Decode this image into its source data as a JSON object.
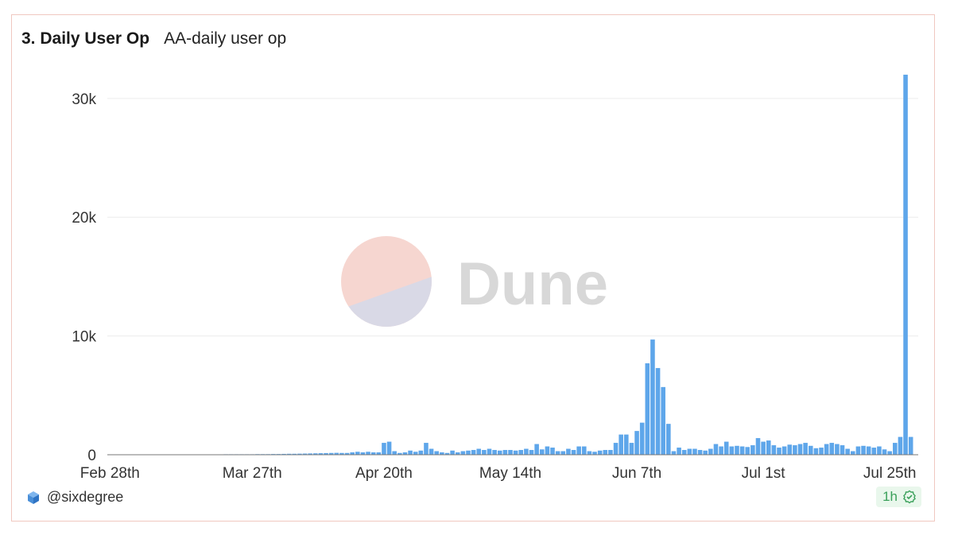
{
  "header": {
    "title": "3. Daily User Op",
    "subtitle": "AA-daily user op"
  },
  "watermark": {
    "text": "Dune"
  },
  "footer": {
    "author": "@sixdegree",
    "refresh_age": "1h"
  },
  "colors": {
    "bar": "#5ea6ea",
    "grid": "#ececec",
    "watermark_top": "#f6d6d0",
    "watermark_bottom": "#d9d9e6"
  },
  "chart_data": {
    "type": "bar",
    "title": "AA-daily user op",
    "xlabel": "",
    "ylabel": "",
    "ylim": [
      0,
      33000
    ],
    "yticks": [
      0,
      10000,
      20000,
      30000
    ],
    "ytick_labels": [
      "0",
      "10k",
      "20k",
      "30k"
    ],
    "xtick_labels": [
      "Feb 28th",
      "Mar 27th",
      "Apr 20th",
      "May 14th",
      "Jun 7th",
      "Jul 1st",
      "Jul 25th"
    ],
    "xtick_index": [
      0,
      27,
      52,
      76,
      100,
      124,
      148
    ],
    "grid": true,
    "legend": "none",
    "values": [
      20,
      20,
      20,
      20,
      20,
      20,
      20,
      20,
      20,
      20,
      30,
      30,
      30,
      30,
      30,
      30,
      30,
      30,
      30,
      30,
      30,
      30,
      40,
      40,
      40,
      40,
      40,
      40,
      50,
      50,
      50,
      60,
      60,
      70,
      80,
      80,
      90,
      100,
      110,
      120,
      130,
      140,
      150,
      160,
      150,
      150,
      200,
      250,
      200,
      250,
      200,
      200,
      1000,
      1100,
      300,
      150,
      200,
      350,
      250,
      350,
      1000,
      500,
      300,
      200,
      150,
      350,
      200,
      300,
      350,
      400,
      500,
      400,
      500,
      400,
      350,
      400,
      400,
      350,
      400,
      500,
      400,
      900,
      450,
      700,
      600,
      300,
      300,
      500,
      400,
      700,
      700,
      300,
      250,
      350,
      400,
      400,
      1000,
      1700,
      1700,
      1000,
      2000,
      2700,
      7700,
      9700,
      7300,
      5700,
      2600,
      300,
      600,
      400,
      500,
      500,
      400,
      350,
      500,
      900,
      700,
      1100,
      700,
      750,
      700,
      650,
      800,
      1400,
      1100,
      1200,
      800,
      600,
      700,
      850,
      800,
      900,
      1000,
      750,
      550,
      600,
      900,
      1000,
      900,
      800,
      500,
      300,
      700,
      750,
      700,
      600,
      700,
      450,
      300,
      1000,
      1500,
      32000,
      1500
    ]
  }
}
